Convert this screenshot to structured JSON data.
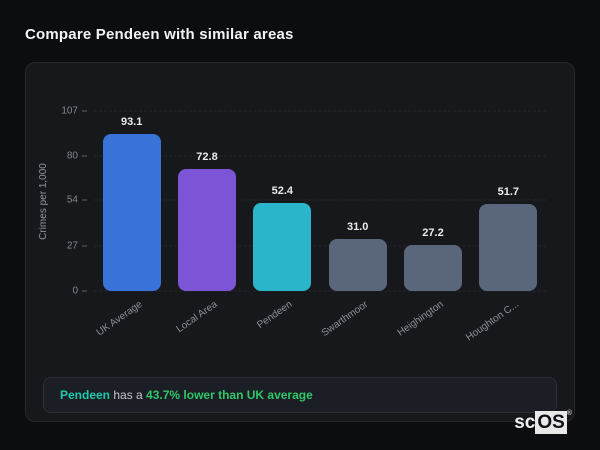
{
  "page": {
    "title": "Compare Pendeen with similar areas"
  },
  "chart_data": {
    "type": "bar",
    "categories": [
      "UK Average",
      "Local Area",
      "Pendeen",
      "Swarthmoor",
      "Heighington",
      "Houghton C..."
    ],
    "values": [
      93.1,
      72.8,
      52.4,
      31.0,
      27.2,
      51.7
    ],
    "value_labels": [
      "93.1",
      "72.8",
      "52.4",
      "31.0",
      "27.2",
      "51.7"
    ],
    "bar_colors": [
      "#3a73d8",
      "#7c55d6",
      "#2ab5cb",
      "#59667c",
      "#59667c",
      "#59667c"
    ],
    "title": "",
    "xlabel": "",
    "ylabel": "Crimes per 1,000",
    "ylim": [
      0,
      107
    ],
    "yticks": [
      0,
      27,
      54,
      80,
      107
    ],
    "grid": "horizontal-dashed",
    "legend": "none",
    "x_label_angle_deg": -35
  },
  "note": {
    "area": "Pendeen",
    "connector": " has a ",
    "highlight": "43.7% lower than UK average",
    "area_color": "#1fc9ae",
    "highlight_color": "#2fc76a"
  },
  "logo": {
    "prefix": "sc",
    "suffix": "OS",
    "mark": "®"
  },
  "colors": {
    "page_background": "#0c0d11",
    "card_background": "#17181c",
    "accent_blue": "#3a73d8",
    "accent_purple": "#7c55d6",
    "accent_cyan": "#2ab5cb",
    "neutral_slate": "#59667c",
    "note_area_teal": "#1fc9ae",
    "note_highlight_green": "#2fc76a"
  }
}
